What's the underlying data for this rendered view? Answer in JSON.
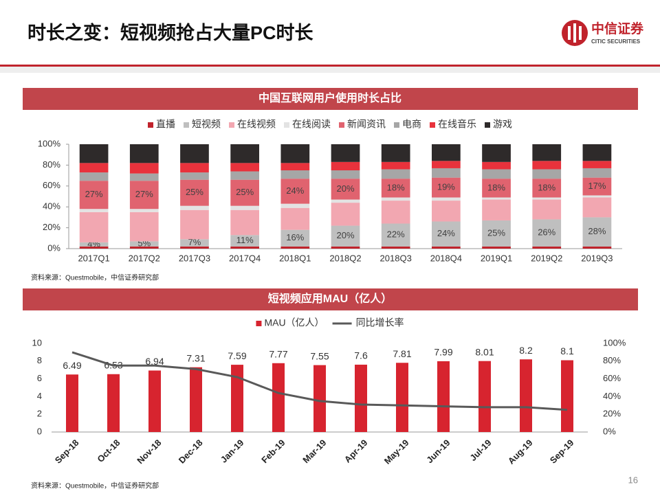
{
  "header": {
    "title": "时长之变：短视频抢占大量PC时长",
    "logo_name": "中信证券",
    "logo_english": "CITIC SECURITIES"
  },
  "page_number": 16,
  "chart_data": [
    {
      "type": "bar",
      "stacked": true,
      "title": "中国互联网用户使用时长占比",
      "source": "资料来源：Questmobile，中信证券研究部",
      "categories": [
        "2017Q1",
        "2017Q2",
        "2017Q3",
        "2017Q4",
        "2018Q1",
        "2018Q2",
        "2018Q3",
        "2018Q4",
        "2019Q1",
        "2019Q2",
        "2019Q3"
      ],
      "ylim": [
        0,
        100
      ],
      "yticks": [
        {
          "value": 0,
          "label": "0%"
        },
        {
          "value": 20,
          "label": "20%"
        },
        {
          "value": 40,
          "label": "40%"
        },
        {
          "value": 60,
          "label": "60%"
        },
        {
          "value": 80,
          "label": "80%"
        },
        {
          "value": 100,
          "label": "100%"
        }
      ],
      "series": [
        {
          "name": "直播",
          "color": "#c0232c",
          "values": [
            2,
            2,
            2,
            2,
            2,
            2,
            2,
            2,
            2,
            2,
            2
          ]
        },
        {
          "name": "短视频",
          "color": "#bfbfbf",
          "values": [
            4,
            5,
            7,
            11,
            16,
            20,
            22,
            24,
            25,
            26,
            28
          ],
          "value_labels": [
            "4%",
            "5%",
            "7%",
            "11%",
            "16%",
            "20%",
            "22%",
            "24%",
            "25%",
            "26%",
            "28%"
          ]
        },
        {
          "name": "在线视频",
          "color": "#f2a7b1",
          "values": [
            29,
            28,
            28,
            24,
            21,
            22,
            22,
            20,
            20,
            19,
            19
          ]
        },
        {
          "name": "在线阅读",
          "color": "#e3e3e3",
          "values": [
            3,
            3,
            4,
            4,
            4,
            3,
            3,
            3,
            2,
            2,
            2
          ]
        },
        {
          "name": "新闻资讯",
          "color": "#e0636f",
          "values": [
            27,
            27,
            25,
            25,
            24,
            20,
            18,
            19,
            18,
            18,
            17
          ],
          "value_labels": [
            "27%",
            "27%",
            "25%",
            "25%",
            "24%",
            "20%",
            "18%",
            "19%",
            "18%",
            "18%",
            "17%"
          ]
        },
        {
          "name": "电商",
          "color": "#a6a6a6",
          "values": [
            8,
            7,
            7,
            8,
            8,
            8,
            9,
            9,
            9,
            9,
            9
          ]
        },
        {
          "name": "在线音乐",
          "color": "#e8323c",
          "values": [
            9,
            10,
            9,
            8,
            7,
            8,
            7,
            7,
            7,
            8,
            7
          ]
        },
        {
          "name": "游戏",
          "color": "#2e2a2a",
          "values": [
            18,
            18,
            18,
            18,
            18,
            17,
            17,
            16,
            17,
            16,
            16
          ]
        }
      ]
    },
    {
      "type": "combo",
      "title": "短视频应用MAU（亿人）",
      "source": "资料来源：Questmobile，中信证券研究部",
      "categories": [
        "Sep-18",
        "Oct-18",
        "Nov-18",
        "Dec-18",
        "Jan-19",
        "Feb-19",
        "Mar-19",
        "Apr-19",
        "May-19",
        "Jun-19",
        "Jul-19",
        "Aug-19",
        "Sep-19"
      ],
      "ylim": [
        0,
        10
      ],
      "yticks": [
        0,
        2,
        4,
        6,
        8,
        10
      ],
      "y2lim": [
        0,
        100
      ],
      "y2ticks": [
        {
          "value": 0,
          "label": "0%"
        },
        {
          "value": 20,
          "label": "20%"
        },
        {
          "value": 40,
          "label": "40%"
        },
        {
          "value": 60,
          "label": "60%"
        },
        {
          "value": 80,
          "label": "80%"
        },
        {
          "value": 100,
          "label": "100%"
        }
      ],
      "series": [
        {
          "name": "MAU（亿人）",
          "type": "bar",
          "color": "#d7242f",
          "values": [
            6.49,
            6.53,
            6.94,
            7.31,
            7.59,
            7.77,
            7.55,
            7.6,
            7.81,
            7.99,
            8.01,
            8.2,
            8.1
          ]
        },
        {
          "name": "同比增长率",
          "type": "line",
          "axis": "y2",
          "color": "#595959",
          "values": [
            90,
            75,
            75,
            71,
            62,
            44,
            35,
            31,
            30,
            29,
            28,
            28,
            25
          ]
        }
      ]
    }
  ]
}
